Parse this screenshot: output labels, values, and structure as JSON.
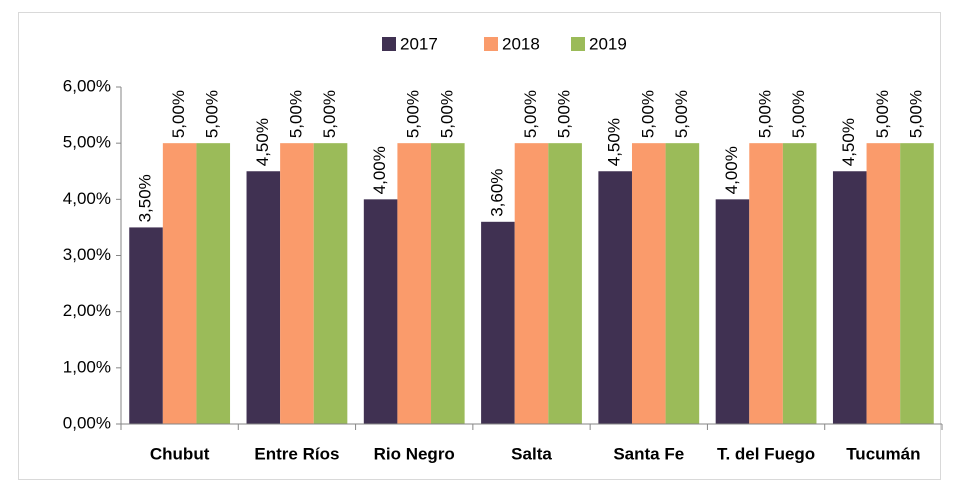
{
  "chart_data": {
    "type": "bar",
    "categories": [
      "Chubut",
      "Entre Ríos",
      "Rio Negro",
      "Salta",
      "Santa Fe",
      "T. del Fuego",
      "Tucumán"
    ],
    "series": [
      {
        "name": "2017",
        "color": "#403152",
        "values": [
          3.5,
          4.5,
          4.0,
          3.6,
          4.5,
          4.0,
          4.5
        ],
        "value_labels": [
          "3,50%",
          "4,50%",
          "4,00%",
          "3,60%",
          "4,50%",
          "4,00%",
          "4,50%"
        ]
      },
      {
        "name": "2018",
        "color": "#fa9b6b",
        "values": [
          5.0,
          5.0,
          5.0,
          5.0,
          5.0,
          5.0,
          5.0
        ],
        "value_labels": [
          "5,00%",
          "5,00%",
          "5,00%",
          "5,00%",
          "5,00%",
          "5,00%",
          "5,00%"
        ]
      },
      {
        "name": "2019",
        "color": "#9bbb59",
        "values": [
          5.0,
          5.0,
          5.0,
          5.0,
          5.0,
          5.0,
          5.0
        ],
        "value_labels": [
          "5,00%",
          "5,00%",
          "5,00%",
          "5,00%",
          "5,00%",
          "5,00%",
          "5,00%"
        ]
      }
    ],
    "ylim": [
      0,
      6
    ],
    "yticks": [
      {
        "value": 0,
        "label": "0,00%"
      },
      {
        "value": 1,
        "label": "1,00%"
      },
      {
        "value": 2,
        "label": "2,00%"
      },
      {
        "value": 3,
        "label": "3,00%"
      },
      {
        "value": 4,
        "label": "4,00%"
      },
      {
        "value": 5,
        "label": "5,00%"
      },
      {
        "value": 6,
        "label": "6,00%"
      }
    ],
    "legend": "top",
    "grid": false
  }
}
